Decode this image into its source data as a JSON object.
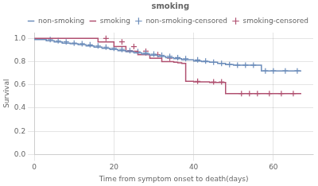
{
  "chart_data": {
    "type": "line",
    "title": "smoking",
    "x_label": "Time from symptom onset to death(days)",
    "y_label": "Survival",
    "xlim": [
      0,
      70
    ],
    "ylim": [
      0.0,
      1.05
    ],
    "xticks": [
      0,
      20,
      40,
      60
    ],
    "yticks": [
      {
        "value": 0.0,
        "label": "0.0"
      },
      0.2,
      0.4,
      0.6,
      0.8,
      {
        "value": 1.0,
        "label": "1.0"
      }
    ],
    "grid": true,
    "legend": "upper right",
    "series": [
      {
        "name": "non-smoking",
        "type": "line",
        "line_style": "step",
        "color": "#6b8cba",
        "x": [
          0,
          3,
          5,
          7,
          9,
          11,
          13,
          15,
          17,
          19,
          21,
          23,
          25,
          27,
          29,
          31,
          33,
          35,
          37,
          40,
          42,
          44,
          46,
          48,
          50,
          52,
          54,
          57,
          59,
          62,
          67
        ],
        "values": [
          1.0,
          0.99,
          0.98,
          0.97,
          0.96,
          0.955,
          0.945,
          0.935,
          0.925,
          0.915,
          0.905,
          0.895,
          0.885,
          0.875,
          0.865,
          0.855,
          0.845,
          0.835,
          0.825,
          0.815,
          0.805,
          0.8,
          0.795,
          0.785,
          0.775,
          0.77,
          0.77,
          0.77,
          0.72,
          0.72,
          0.72
        ]
      },
      {
        "name": "smoking",
        "type": "line",
        "line_style": "step",
        "color": "#b05070",
        "x": [
          0,
          16,
          20,
          23,
          26,
          29,
          32,
          35,
          36,
          37,
          38,
          40,
          44,
          48,
          50,
          58,
          67
        ],
        "values": [
          1.0,
          1.0,
          0.97,
          0.93,
          0.89,
          0.86,
          0.83,
          0.8,
          0.795,
          0.79,
          0.785,
          0.63,
          0.625,
          0.62,
          0.525,
          0.525,
          0.525
        ]
      },
      {
        "name": "non-smoking-censored",
        "type": "scatter",
        "marker": "+",
        "color": "#6b8cba",
        "x": [
          4,
          6,
          8,
          10,
          12,
          14,
          16,
          18,
          20,
          22,
          24,
          26,
          28,
          30,
          32,
          34,
          36,
          38,
          41,
          43,
          45,
          47,
          49,
          51,
          53,
          55,
          58,
          60,
          63,
          66
        ],
        "values": [
          0.99,
          0.98,
          0.97,
          0.96,
          0.955,
          0.945,
          0.935,
          0.925,
          0.915,
          0.905,
          0.895,
          0.885,
          0.875,
          0.865,
          0.855,
          0.845,
          0.835,
          0.825,
          0.815,
          0.805,
          0.795,
          0.785,
          0.775,
          0.77,
          0.77,
          0.77,
          0.72,
          0.72,
          0.72,
          0.72
        ]
      },
      {
        "name": "smoking-censored",
        "type": "scatter",
        "marker": "+",
        "color": "#b05070",
        "x": [
          18,
          22,
          25,
          28,
          31,
          34,
          41,
          45,
          47,
          52,
          54,
          56,
          59,
          62,
          65
        ],
        "values": [
          1.0,
          0.97,
          0.93,
          0.89,
          0.86,
          0.83,
          0.63,
          0.625,
          0.625,
          0.525,
          0.525,
          0.525,
          0.525,
          0.525,
          0.525
        ]
      }
    ]
  }
}
